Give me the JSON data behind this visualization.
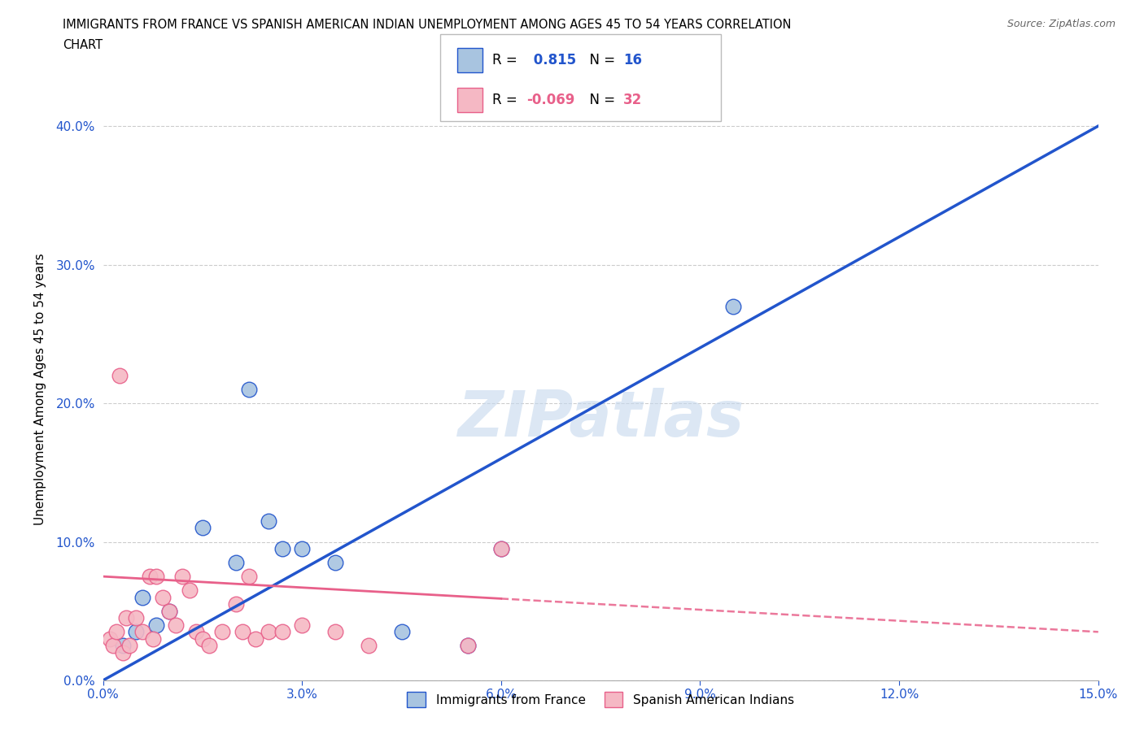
{
  "title_line1": "IMMIGRANTS FROM FRANCE VS SPANISH AMERICAN INDIAN UNEMPLOYMENT AMONG AGES 45 TO 54 YEARS CORRELATION",
  "title_line2": "CHART",
  "source": "Source: ZipAtlas.com",
  "xlabel_vals": [
    0.0,
    3.0,
    6.0,
    9.0,
    12.0,
    15.0
  ],
  "ylabel_vals": [
    0.0,
    10.0,
    20.0,
    30.0,
    40.0
  ],
  "ylabel_label": "Unemployment Among Ages 45 to 54 years",
  "legend_labels": [
    "Immigrants from France",
    "Spanish American Indians"
  ],
  "R_blue": 0.815,
  "N_blue": 16,
  "R_pink": -0.069,
  "N_pink": 32,
  "blue_color": "#a8c4e0",
  "pink_color": "#f5b8c4",
  "blue_line_color": "#2255cc",
  "pink_line_color": "#e8608a",
  "watermark": "ZIPatlas",
  "blue_scatter_x": [
    0.3,
    0.5,
    0.6,
    0.8,
    1.0,
    1.5,
    2.0,
    2.5,
    2.7,
    3.0,
    3.5,
    4.5,
    5.5,
    6.0,
    9.5,
    2.2
  ],
  "blue_scatter_y": [
    2.5,
    3.5,
    6.0,
    4.0,
    5.0,
    11.0,
    8.5,
    11.5,
    9.5,
    9.5,
    8.5,
    3.5,
    2.5,
    9.5,
    27.0,
    21.0
  ],
  "pink_scatter_x": [
    0.1,
    0.15,
    0.2,
    0.3,
    0.35,
    0.4,
    0.5,
    0.6,
    0.7,
    0.75,
    0.8,
    0.9,
    1.0,
    1.1,
    1.2,
    1.3,
    1.4,
    1.5,
    1.6,
    1.8,
    2.0,
    2.1,
    2.2,
    2.3,
    2.5,
    2.7,
    3.0,
    3.5,
    4.0,
    5.5,
    6.0,
    0.25
  ],
  "pink_scatter_y": [
    3.0,
    2.5,
    3.5,
    2.0,
    4.5,
    2.5,
    4.5,
    3.5,
    7.5,
    3.0,
    7.5,
    6.0,
    5.0,
    4.0,
    7.5,
    6.5,
    3.5,
    3.0,
    2.5,
    3.5,
    5.5,
    3.5,
    7.5,
    3.0,
    3.5,
    3.5,
    4.0,
    3.5,
    2.5,
    2.5,
    9.5,
    22.0
  ],
  "blue_line_x0": 0.0,
  "blue_line_y0": 0.0,
  "blue_line_x1": 15.0,
  "blue_line_y1": 40.0,
  "pink_line_x0": 0.0,
  "pink_line_y0": 7.5,
  "pink_line_x1": 15.0,
  "pink_line_y1": 3.5,
  "pink_solid_end": 6.0,
  "xlim": [
    0,
    15
  ],
  "ylim": [
    0,
    42
  ]
}
